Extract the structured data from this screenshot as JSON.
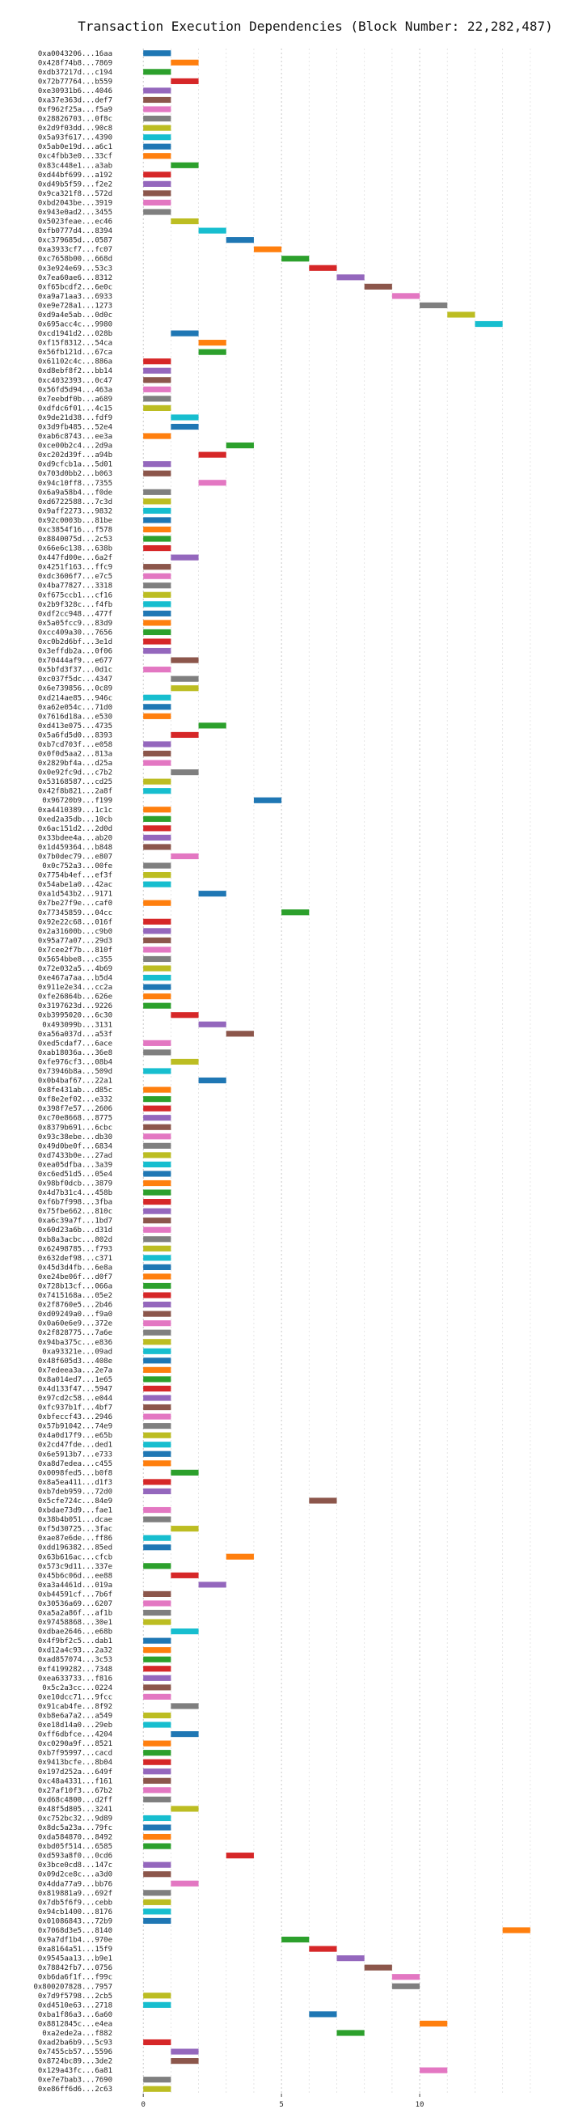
{
  "chart_data": {
    "type": "bar",
    "orientation": "horizontal-gantt",
    "title": "Transaction Execution Dependencies (Block Number: 22,282,487)",
    "xlabel": "",
    "ylabel": "",
    "xlim": [
      -1,
      15
    ],
    "xticks": [
      0,
      5,
      10
    ],
    "grid": "vertical dashed",
    "bar_width": 1,
    "palette": [
      "#1f77b4",
      "#ff7f0e",
      "#2ca02c",
      "#d62728",
      "#9467bd",
      "#8c564b",
      "#e377c2",
      "#7f7f7f",
      "#bcbd22",
      "#17becf"
    ],
    "tasks": [
      {
        "label": "0xa0043206...16aa",
        "start": 0
      },
      {
        "label": "0x428f74b8...7869",
        "start": 1
      },
      {
        "label": "0xdb37217d...c194",
        "start": 0
      },
      {
        "label": "0x72b77764...b559",
        "start": 1
      },
      {
        "label": "0xe30931b6...4046",
        "start": 0
      },
      {
        "label": "0xa37e363d...def7",
        "start": 0
      },
      {
        "label": "0xf962f25a...f5a9",
        "start": 0
      },
      {
        "label": "0x28826703...0f8c",
        "start": 0
      },
      {
        "label": "0x2d9f03dd...90c8",
        "start": 0
      },
      {
        "label": "0x5a93f617...4390",
        "start": 0
      },
      {
        "label": "0x5ab0e19d...a6c1",
        "start": 0
      },
      {
        "label": "0xc4fbb3e0...33cf",
        "start": 0
      },
      {
        "label": "0x83c448e1...a3ab",
        "start": 1
      },
      {
        "label": "0xd44bf699...a192",
        "start": 0
      },
      {
        "label": "0xd49b5f59...f2e2",
        "start": 0
      },
      {
        "label": "0x9ca321f8...572d",
        "start": 0
      },
      {
        "label": "0xbd2043be...3919",
        "start": 0
      },
      {
        "label": "0x943e0ad2...3455",
        "start": 0
      },
      {
        "label": "0x5023feae...ec46",
        "start": 1
      },
      {
        "label": "0xfb0777d4...8394",
        "start": 2
      },
      {
        "label": "0xc379685d...0587",
        "start": 3
      },
      {
        "label": "0xa3933cf7...fc07",
        "start": 4
      },
      {
        "label": "0xc7658b00...668d",
        "start": 5
      },
      {
        "label": "0x3e924e69...53c3",
        "start": 6
      },
      {
        "label": "0x7ea60ae6...8312",
        "start": 7
      },
      {
        "label": "0xf65bcdf2...6e0c",
        "start": 8
      },
      {
        "label": "0xa9a71aa3...6933",
        "start": 9
      },
      {
        "label": "0xe9e728a1...1273",
        "start": 10
      },
      {
        "label": "0xd9a4e5ab...0d0c",
        "start": 11
      },
      {
        "label": "0x695acc4c...9980",
        "start": 12
      },
      {
        "label": "0xcd1941d2...028b",
        "start": 1
      },
      {
        "label": "0xf15f8312...54ca",
        "start": 2
      },
      {
        "label": "0x56fb121d...67ca",
        "start": 2
      },
      {
        "label": "0x61102c4c...886a",
        "start": 0
      },
      {
        "label": "0xd8ebf8f2...bb14",
        "start": 0
      },
      {
        "label": "0xc4032393...0c47",
        "start": 0
      },
      {
        "label": "0x56fd5d94...463a",
        "start": 0
      },
      {
        "label": "0x7eebdf0b...a689",
        "start": 0
      },
      {
        "label": "0xdfdc6f01...4c15",
        "start": 0
      },
      {
        "label": "0x9de21d38...fdf9",
        "start": 1
      },
      {
        "label": "0x3d9fb485...52e4",
        "start": 1
      },
      {
        "label": "0xab6c8743...ee3a",
        "start": 0
      },
      {
        "label": "0xce00b2c4...2d9a",
        "start": 3
      },
      {
        "label": "0xc202d39f...a94b",
        "start": 2
      },
      {
        "label": "0xd9cfcb1a...5d01",
        "start": 0
      },
      {
        "label": "0x703d0bb2...b063",
        "start": 0
      },
      {
        "label": "0x94c10ff8...7355",
        "start": 2
      },
      {
        "label": "0x6a9a58b4...f0de",
        "start": 0
      },
      {
        "label": "0xd6722588...7c3d",
        "start": 0
      },
      {
        "label": "0x9aff2273...9832",
        "start": 0
      },
      {
        "label": "0x92c0003b...81be",
        "start": 0
      },
      {
        "label": "0xc3854f16...f578",
        "start": 0
      },
      {
        "label": "0x8840075d...2c53",
        "start": 0
      },
      {
        "label": "0x66e6c138...638b",
        "start": 0
      },
      {
        "label": "0x447fd00e...6a2f",
        "start": 1
      },
      {
        "label": "0x4251f163...ffc9",
        "start": 0
      },
      {
        "label": "0xdc3606f7...e7c5",
        "start": 0
      },
      {
        "label": "0x4ba77827...3318",
        "start": 0
      },
      {
        "label": "0xf675ccb1...cf16",
        "start": 0
      },
      {
        "label": "0x2b9f328c...f4fb",
        "start": 0
      },
      {
        "label": "0xdf2cc948...477f",
        "start": 0
      },
      {
        "label": "0x5a05fcc9...83d9",
        "start": 0
      },
      {
        "label": "0xcc409a30...7656",
        "start": 0
      },
      {
        "label": "0xc0b2d6bf...3e1d",
        "start": 0
      },
      {
        "label": "0x3effdb2a...0f06",
        "start": 0
      },
      {
        "label": "0x70444af9...e677",
        "start": 1
      },
      {
        "label": "0x5bfd3f37...0d1c",
        "start": 0
      },
      {
        "label": "0xc037f5dc...4347",
        "start": 1
      },
      {
        "label": "0x6e739856...0c89",
        "start": 1
      },
      {
        "label": "0xd214ae85...946c",
        "start": 0
      },
      {
        "label": "0xa62e054c...71d0",
        "start": 0
      },
      {
        "label": "0x7616d18a...e530",
        "start": 0
      },
      {
        "label": "0xd413e075...4735",
        "start": 2
      },
      {
        "label": "0x5a6fd5d0...8393",
        "start": 1
      },
      {
        "label": "0xb7cd703f...e058",
        "start": 0
      },
      {
        "label": "0x0f0d5aa2...813a",
        "start": 0
      },
      {
        "label": "0x2829bf4a...d25a",
        "start": 0
      },
      {
        "label": "0x0e92fc9d...c7b2",
        "start": 1
      },
      {
        "label": "0x53168587...cd25",
        "start": 0
      },
      {
        "label": "0x42f8b821...2a8f",
        "start": 0
      },
      {
        "label": "0x96720b9...f199",
        "start": 4
      },
      {
        "label": "0xa4410389...1c1c",
        "start": 0
      },
      {
        "label": "0xed2a35db...10cb",
        "start": 0
      },
      {
        "label": "0x6ac151d2...2d0d",
        "start": 0
      },
      {
        "label": "0x33bdee4a...ab20",
        "start": 0
      },
      {
        "label": "0x1d459364...b848",
        "start": 0
      },
      {
        "label": "0x7b0dec79...e807",
        "start": 1
      },
      {
        "label": "0x0c752a3...00fe",
        "start": 0
      },
      {
        "label": "0x7754b4ef...ef3f",
        "start": 0
      },
      {
        "label": "0x54abe1a0...42ac",
        "start": 0
      },
      {
        "label": "0xa1d543b2...9171",
        "start": 2
      },
      {
        "label": "0x7be27f9e...caf0",
        "start": 0
      },
      {
        "label": "0x77345859...04cc",
        "start": 5
      },
      {
        "label": "0x92e22c68...016f",
        "start": 0
      },
      {
        "label": "0x2a31600b...c9b0",
        "start": 0
      },
      {
        "label": "0x95a77a07...29d3",
        "start": 0
      },
      {
        "label": "0x7cee2f7b...810f",
        "start": 0
      },
      {
        "label": "0x5654bbe8...c355",
        "start": 0
      },
      {
        "label": "0x72e032a5...4b69",
        "start": 0
      },
      {
        "label": "0xe467a7aa...b5d4",
        "start": 0
      },
      {
        "label": "0x911e2e34...cc2a",
        "start": 0
      },
      {
        "label": "0xfe26864b...626e",
        "start": 0
      },
      {
        "label": "0x3197623d...9226",
        "start": 0
      },
      {
        "label": "0xb3995020...6c30",
        "start": 1
      },
      {
        "label": "0x493099b...3131",
        "start": 2
      },
      {
        "label": "0xa56a037d...a53f",
        "start": 3
      },
      {
        "label": "0xed5cdaf7...6ace",
        "start": 0
      },
      {
        "label": "0xab18036a...36e8",
        "start": 0
      },
      {
        "label": "0xfe976cf3...08b4",
        "start": 1
      },
      {
        "label": "0x73946b8a...509d",
        "start": 0
      },
      {
        "label": "0x0b4baf67...22a1",
        "start": 2
      },
      {
        "label": "0x8fe431ab...d85c",
        "start": 0
      },
      {
        "label": "0xf8e2ef02...e332",
        "start": 0
      },
      {
        "label": "0x398f7e57...2606",
        "start": 0
      },
      {
        "label": "0xc70e8668...8775",
        "start": 0
      },
      {
        "label": "0x8379b691...6cbc",
        "start": 0
      },
      {
        "label": "0x93c38ebe...db30",
        "start": 0
      },
      {
        "label": "0x49d0be0f...6834",
        "start": 0
      },
      {
        "label": "0xd7433b0e...27ad",
        "start": 0
      },
      {
        "label": "0xea05dfba...3a39",
        "start": 0
      },
      {
        "label": "0xc6ed51d5...05e4",
        "start": 0
      },
      {
        "label": "0x98bf0dcb...3879",
        "start": 0
      },
      {
        "label": "0x4d7b31c4...458b",
        "start": 0
      },
      {
        "label": "0xf6b7f998...3fba",
        "start": 0
      },
      {
        "label": "0x75fbe662...810c",
        "start": 0
      },
      {
        "label": "0xa6c39a7f...1bd7",
        "start": 0
      },
      {
        "label": "0x60d23a6b...d31d",
        "start": 0
      },
      {
        "label": "0xb8a3acbc...802d",
        "start": 0
      },
      {
        "label": "0x62498785...f793",
        "start": 0
      },
      {
        "label": "0x632def98...c371",
        "start": 0
      },
      {
        "label": "0x45d3d4fb...6e8a",
        "start": 0
      },
      {
        "label": "0xe24be06f...d0f7",
        "start": 0
      },
      {
        "label": "0x728b13cf...066a",
        "start": 0
      },
      {
        "label": "0x7415168a...05e2",
        "start": 0
      },
      {
        "label": "0x2f8760e5...2b46",
        "start": 0
      },
      {
        "label": "0xd09249a0...f9a0",
        "start": 0
      },
      {
        "label": "0x0a60e6e9...372e",
        "start": 0
      },
      {
        "label": "0x2f828775...7a6e",
        "start": 0
      },
      {
        "label": "0x94ba375c...e836",
        "start": 0
      },
      {
        "label": "0xa93321e...09ad",
        "start": 0
      },
      {
        "label": "0x48f605d3...408e",
        "start": 0
      },
      {
        "label": "0x7edeea3a...2e7a",
        "start": 0
      },
      {
        "label": "0x8a014ed7...1e65",
        "start": 0
      },
      {
        "label": "0x4d133f47...5947",
        "start": 0
      },
      {
        "label": "0x97cd2c58...e044",
        "start": 0
      },
      {
        "label": "0xfc937b1f...4bf7",
        "start": 0
      },
      {
        "label": "0xbfeccf43...2946",
        "start": 0
      },
      {
        "label": "0x57b91042...74e9",
        "start": 0
      },
      {
        "label": "0x4a0d17f9...e65b",
        "start": 0
      },
      {
        "label": "0x2cd47fde...ded1",
        "start": 0
      },
      {
        "label": "0x6e5913b7...e733",
        "start": 0
      },
      {
        "label": "0xa8d7edea...c455",
        "start": 0
      },
      {
        "label": "0x0098fed5...b0f8",
        "start": 1
      },
      {
        "label": "0x8a5ea411...d1f3",
        "start": 0
      },
      {
        "label": "0xb7deb959...72d0",
        "start": 0
      },
      {
        "label": "0x5cfe724c...84e9",
        "start": 6
      },
      {
        "label": "0xbdae73d9...fae1",
        "start": 0
      },
      {
        "label": "0x38b4b051...dcae",
        "start": 0
      },
      {
        "label": "0xf5d30725...3fac",
        "start": 1
      },
      {
        "label": "0xae87e6de...ff86",
        "start": 0
      },
      {
        "label": "0xdd196382...85ed",
        "start": 0
      },
      {
        "label": "0x63b616ac...cfcb",
        "start": 3
      },
      {
        "label": "0x573c9d11...337e",
        "start": 0
      },
      {
        "label": "0x45b6c06d...ee88",
        "start": 1
      },
      {
        "label": "0xa3a4461d...019a",
        "start": 2
      },
      {
        "label": "0xb44591cf...7b6f",
        "start": 0
      },
      {
        "label": "0x30536a69...6207",
        "start": 0
      },
      {
        "label": "0xa5a2a86f...af1b",
        "start": 0
      },
      {
        "label": "0x97458868...30e1",
        "start": 0
      },
      {
        "label": "0xdbae2646...e68b",
        "start": 1
      },
      {
        "label": "0x4f9bf2c5...dab1",
        "start": 0
      },
      {
        "label": "0xd12a4c93...2a32",
        "start": 0
      },
      {
        "label": "0xad857074...3c53",
        "start": 0
      },
      {
        "label": "0xf4199282...7348",
        "start": 0
      },
      {
        "label": "0xea633733...f816",
        "start": 0
      },
      {
        "label": "0x5c2a3cc...0224",
        "start": 0
      },
      {
        "label": "0xe10dcc71...9fcc",
        "start": 0
      },
      {
        "label": "0x91cab4fe...8f92",
        "start": 1
      },
      {
        "label": "0xb8e6a7a2...a549",
        "start": 0
      },
      {
        "label": "0xe18d14a0...29eb",
        "start": 0
      },
      {
        "label": "0xff6dbfce...4204",
        "start": 1
      },
      {
        "label": "0xc0290a9f...8521",
        "start": 0
      },
      {
        "label": "0xb7f95997...cacd",
        "start": 0
      },
      {
        "label": "0x9413bcfe...8b04",
        "start": 0
      },
      {
        "label": "0x197d252a...649f",
        "start": 0
      },
      {
        "label": "0xc48a4331...f161",
        "start": 0
      },
      {
        "label": "0x27af10f3...67b2",
        "start": 0
      },
      {
        "label": "0xd68c4800...d2ff",
        "start": 0
      },
      {
        "label": "0x48f5d805...3241",
        "start": 1
      },
      {
        "label": "0xc752bc32...9d89",
        "start": 0
      },
      {
        "label": "0x8dc5a23a...79fc",
        "start": 0
      },
      {
        "label": "0xda584870...8492",
        "start": 0
      },
      {
        "label": "0xbd05f514...6585",
        "start": 0
      },
      {
        "label": "0xd593a8f0...0cd6",
        "start": 3
      },
      {
        "label": "0x3bce0cd8...147c",
        "start": 0
      },
      {
        "label": "0x09d2ce8c...a3d0",
        "start": 0
      },
      {
        "label": "0x4dda77a9...bb76",
        "start": 1
      },
      {
        "label": "0x819881a9...692f",
        "start": 0
      },
      {
        "label": "0x7db5f6f9...cebb",
        "start": 0
      },
      {
        "label": "0x94cb1400...8176",
        "start": 0
      },
      {
        "label": "0x01086843...72b9",
        "start": 0
      },
      {
        "label": "0x7068d3e5...8140",
        "start": 13
      },
      {
        "label": "0x9a7df1b4...970e",
        "start": 5
      },
      {
        "label": "0xa8164a51...15f9",
        "start": 6
      },
      {
        "label": "0x9545aa13...b9e1",
        "start": 7
      },
      {
        "label": "0x78842fb7...0756",
        "start": 8
      },
      {
        "label": "0xb6da6f1f...f99c",
        "start": 9
      },
      {
        "label": "0x800207828...7957",
        "start": 9
      },
      {
        "label": "0x7d9f5798...2cb5",
        "start": 0
      },
      {
        "label": "0xd4510e63...2718",
        "start": 0
      },
      {
        "label": "0xba1f86a3...6a60",
        "start": 6
      },
      {
        "label": "0x8812845c...e4ea",
        "start": 10
      },
      {
        "label": "0xa2ede2a...f882",
        "start": 7
      },
      {
        "label": "0xad2ba6b9...5c93",
        "start": 0
      },
      {
        "label": "0x7455cb57...5596",
        "start": 1
      },
      {
        "label": "0x8724bc89...3de2",
        "start": 1
      },
      {
        "label": "0x129a43fc...6a81",
        "start": 10
      },
      {
        "label": "0xe7e7bab3...7690",
        "start": 0
      },
      {
        "label": "0xe86ff6d6...2c63",
        "start": 0
      }
    ]
  }
}
